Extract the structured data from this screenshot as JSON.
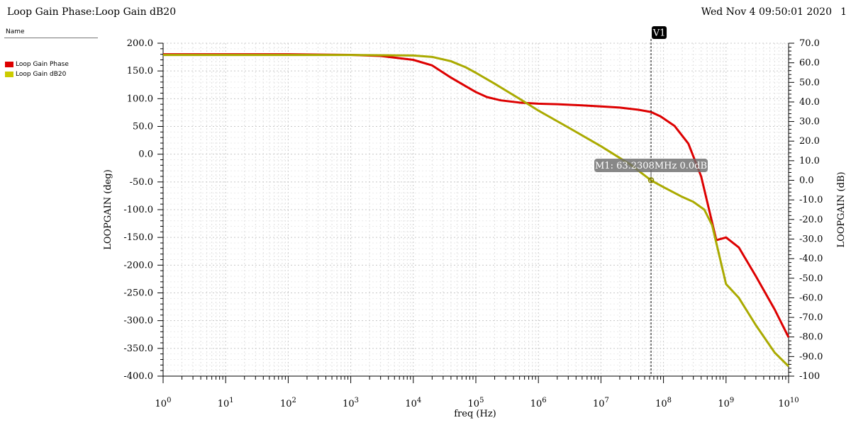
{
  "header": {
    "title": "Loop Gain Phase:Loop Gain dB20",
    "datetime": "Wed Nov 4 09:50:01 2020",
    "page": "1"
  },
  "legend": {
    "title": "Name",
    "items": [
      {
        "label": "Loop Gain Phase",
        "color": "#dd0000"
      },
      {
        "label": "Loop Gain dB20",
        "color": "#cccc00"
      }
    ]
  },
  "chart_data": {
    "type": "line",
    "xlabel": "freq (Hz)",
    "x_scale": "log",
    "xlim": [
      1,
      10000000000
    ],
    "x_tick_labels": [
      {
        "base": "10",
        "exp": "0"
      },
      {
        "base": "10",
        "exp": "1"
      },
      {
        "base": "10",
        "exp": "2"
      },
      {
        "base": "10",
        "exp": "3"
      },
      {
        "base": "10",
        "exp": "4"
      },
      {
        "base": "10",
        "exp": "5"
      },
      {
        "base": "10",
        "exp": "6"
      },
      {
        "base": "10",
        "exp": "7"
      },
      {
        "base": "10",
        "exp": "8"
      },
      {
        "base": "10",
        "exp": "9"
      },
      {
        "base": "10",
        "exp": "10"
      }
    ],
    "ylabel_left": "LOOPGAIN (deg)",
    "ylim_left": [
      -400,
      200
    ],
    "y_tick_labels_left": [
      "200.0",
      "150.0",
      "100.0",
      "50.0",
      "0.0",
      "-50.0",
      "-100.0",
      "-150.0",
      "-200.0",
      "-250.0",
      "-300.0",
      "-350.0",
      "-400.0"
    ],
    "ylabel_right": "LOOPGAIN (dB)",
    "ylim_right": [
      -100,
      70
    ],
    "y_tick_labels_right": [
      "70.0",
      "60.0",
      "50.0",
      "40.0",
      "30.0",
      "20.0",
      "10.0",
      "0.0",
      "-10.0",
      "-20.0",
      "-30.0",
      "-40.0",
      "-50.0",
      "-60.0",
      "-70.0",
      "-80.0",
      "-90.0",
      "-100"
    ],
    "grid": true,
    "series": [
      {
        "name": "Loop Gain Phase",
        "axis": "left",
        "color": "#dd0000",
        "x": [
          1,
          10,
          100,
          1000,
          3000,
          10000,
          20000,
          40000,
          70000,
          100000,
          150000,
          250000,
          500000,
          1000000,
          2000000,
          5000000,
          10000000,
          20000000,
          40000000,
          63230800,
          90000000,
          150000000,
          250000000,
          400000000,
          700000000,
          1000000000,
          1600000000,
          3000000000,
          6000000000,
          10000000000
        ],
        "y": [
          180,
          180,
          180,
          179,
          177,
          170,
          160,
          138,
          122,
          112,
          103,
          97,
          93,
          91,
          90,
          88,
          86,
          84,
          80,
          76,
          68,
          51,
          19,
          -40,
          -155,
          -150,
          -168,
          -220,
          -280,
          -330
        ]
      },
      {
        "name": "Loop Gain dB20",
        "axis": "right",
        "color": "#aaaa00",
        "x": [
          1,
          10,
          100,
          1000,
          10000,
          20000,
          40000,
          70000,
          100000,
          200000,
          500000,
          1000000,
          3000000,
          10000000,
          30000000,
          63230800,
          100000000,
          200000000,
          300000000,
          450000000,
          600000000,
          1000000000,
          1600000000,
          3000000000,
          6000000000,
          10000000000
        ],
        "y": [
          64,
          64,
          64,
          64,
          63.7,
          63,
          60.8,
          57.6,
          54.9,
          49.3,
          41.6,
          35.6,
          27,
          17.4,
          7.9,
          0.0,
          -3.5,
          -8.5,
          -11,
          -15,
          -23,
          -53,
          -60,
          -74,
          -88,
          -95
        ]
      }
    ],
    "marker_line": {
      "label": "V1",
      "x": 63230800
    },
    "marker_point": {
      "label": "M1: 63.2308MHz 0.0dB",
      "x": 63230800,
      "y_db": 0.0
    }
  }
}
